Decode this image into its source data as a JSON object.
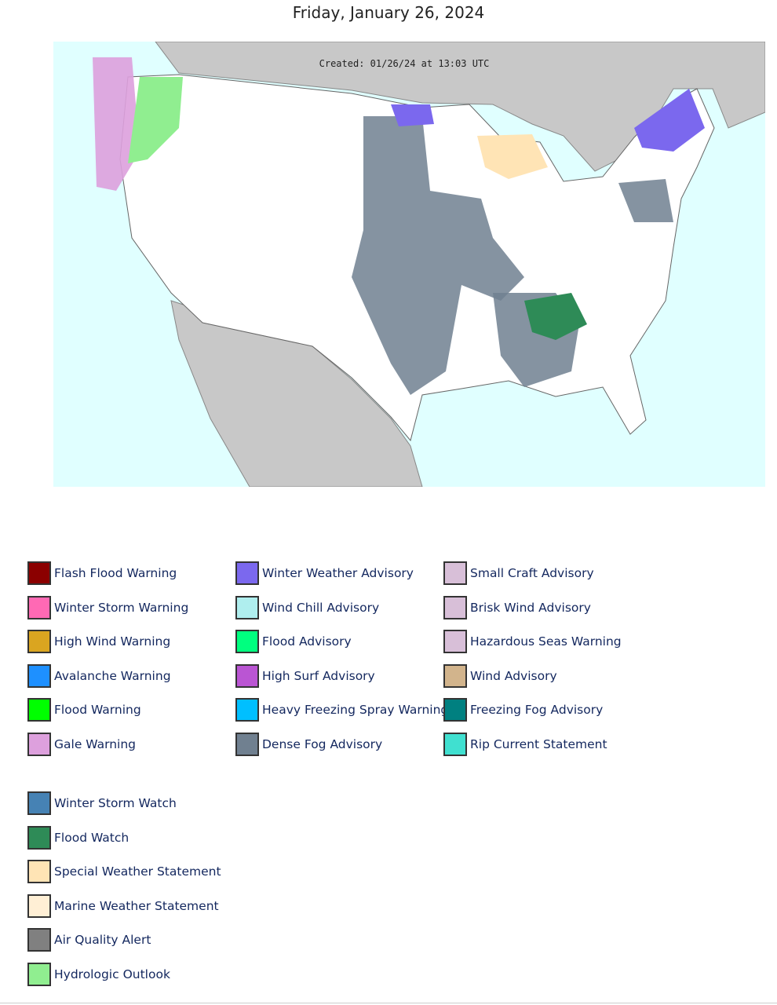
{
  "header": {
    "title": "Friday, January 26, 2024"
  },
  "map": {
    "created": "Created: 01/26/24 at 13:03 UTC"
  },
  "legend": {
    "columns": [
      [
        {
          "label": "Flash Flood Warning",
          "color": "#8B0000"
        },
        {
          "label": "Winter Storm Warning",
          "color": "#FF69B4"
        },
        {
          "label": "High Wind Warning",
          "color": "#DAA520"
        },
        {
          "label": "Avalanche Warning",
          "color": "#1E90FF"
        },
        {
          "label": "Flood Warning",
          "color": "#00FF00"
        },
        {
          "label": "Gale Warning",
          "color": "#DDA0DD"
        }
      ],
      [
        {
          "label": "Winter Weather Advisory",
          "color": "#7B68EE"
        },
        {
          "label": "Wind Chill Advisory",
          "color": "#AFEEEE"
        },
        {
          "label": "Flood Advisory",
          "color": "#00FF7F"
        },
        {
          "label": "High Surf Advisory",
          "color": "#BA55D3"
        },
        {
          "label": "Heavy Freezing Spray Warning",
          "color": "#00BFFF"
        },
        {
          "label": "Dense Fog Advisory",
          "color": "#708090"
        }
      ],
      [
        {
          "label": "Small Craft Advisory",
          "color": "#D8BFD8"
        },
        {
          "label": "Brisk Wind Advisory",
          "color": "#D8BFD8"
        },
        {
          "label": "Hazardous Seas Warning",
          "color": "#D8BFD8"
        },
        {
          "label": "Wind Advisory",
          "color": "#D2B48C"
        },
        {
          "label": "Freezing Fog Advisory",
          "color": "#008080"
        },
        {
          "label": "Rip Current Statement",
          "color": "#40E0D0"
        }
      ]
    ],
    "watches": [
      {
        "label": "Winter Storm Watch",
        "color": "#4682B4"
      },
      {
        "label": "Flood Watch",
        "color": "#2E8B57"
      },
      {
        "label": "Special Weather Statement",
        "color": "#FFE4B5"
      },
      {
        "label": "Marine Weather Statement",
        "color": "#FFEFD5"
      },
      {
        "label": "Air Quality Alert",
        "color": "#808080"
      },
      {
        "label": "Hydrologic Outlook",
        "color": "#90EE90"
      }
    ]
  }
}
